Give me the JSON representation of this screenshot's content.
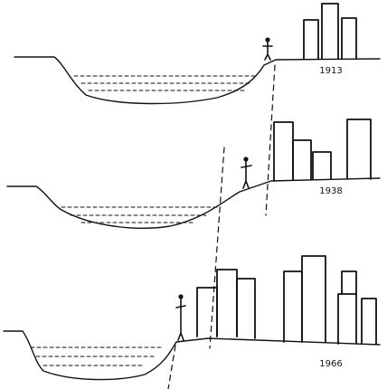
{
  "panels": [
    {
      "id": "panel-1913",
      "year": "1913"
    },
    {
      "id": "panel-1938",
      "year": "1938"
    },
    {
      "id": "panel-1966",
      "year": "1966"
    }
  ]
}
